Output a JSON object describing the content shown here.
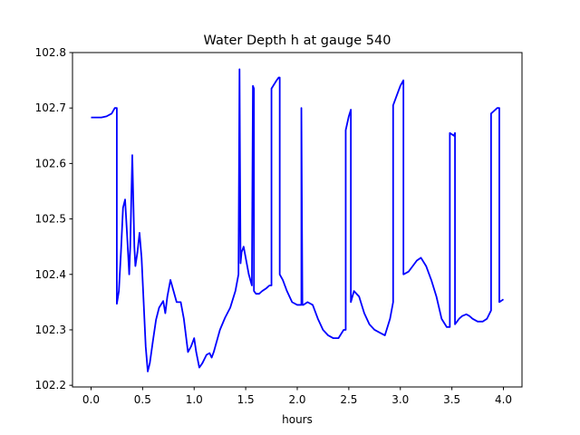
{
  "chart_data": {
    "type": "line",
    "title": "Water Depth h at gauge 540",
    "xlabel": "hours",
    "ylabel": "",
    "xlim": [
      -0.18,
      4.18
    ],
    "ylim": [
      102.197,
      102.8
    ],
    "xticks": [
      0.0,
      0.5,
      1.0,
      1.5,
      2.0,
      2.5,
      3.0,
      3.5,
      4.0
    ],
    "xtick_labels": [
      "0.0",
      "0.5",
      "1.0",
      "1.5",
      "2.0",
      "2.5",
      "3.0",
      "3.5",
      "4.0"
    ],
    "yticks": [
      102.2,
      102.3,
      102.4,
      102.5,
      102.6,
      102.7,
      102.8
    ],
    "ytick_labels": [
      "102.2",
      "102.3",
      "102.4",
      "102.5",
      "102.6",
      "102.7",
      "102.8"
    ],
    "grid": false,
    "series": [
      {
        "color": "#0000ff",
        "x": [
          0.0,
          0.1,
          0.15,
          0.2,
          0.23,
          0.25,
          0.25,
          0.27,
          0.29,
          0.31,
          0.33,
          0.35,
          0.37,
          0.38,
          0.4,
          0.42,
          0.43,
          0.45,
          0.47,
          0.49,
          0.51,
          0.53,
          0.55,
          0.57,
          0.6,
          0.63,
          0.66,
          0.7,
          0.72,
          0.74,
          0.77,
          0.8,
          0.83,
          0.87,
          0.9,
          0.94,
          0.97,
          1.0,
          1.02,
          1.05,
          1.08,
          1.12,
          1.15,
          1.17,
          1.19,
          1.22,
          1.25,
          1.3,
          1.35,
          1.4,
          1.43,
          1.44,
          1.45,
          1.46,
          1.48,
          1.5,
          1.53,
          1.56,
          1.57,
          1.58,
          1.58,
          1.6,
          1.63,
          1.66,
          1.7,
          1.73,
          1.75,
          1.75,
          1.8,
          1.82,
          1.83,
          1.83,
          1.86,
          1.9,
          1.95,
          2.0,
          2.04,
          2.04,
          2.05,
          2.06,
          2.1,
          2.15,
          2.2,
          2.25,
          2.3,
          2.35,
          2.4,
          2.45,
          2.47,
          2.47,
          2.5,
          2.52,
          2.52,
          2.55,
          2.6,
          2.65,
          2.7,
          2.75,
          2.8,
          2.85,
          2.9,
          2.93,
          2.93,
          3.0,
          3.03,
          3.03,
          3.08,
          3.12,
          3.16,
          3.2,
          3.25,
          3.3,
          3.35,
          3.4,
          3.45,
          3.48,
          3.48,
          3.52,
          3.53,
          3.53,
          3.57,
          3.6,
          3.64,
          3.67,
          3.7,
          3.75,
          3.8,
          3.84,
          3.88,
          3.88,
          3.94,
          3.96,
          3.96,
          4.0
        ],
        "y": [
          102.683,
          102.683,
          102.685,
          102.69,
          102.7,
          102.7,
          102.347,
          102.37,
          102.44,
          102.52,
          102.535,
          102.47,
          102.4,
          102.45,
          102.615,
          102.45,
          102.415,
          102.44,
          102.475,
          102.43,
          102.35,
          102.27,
          102.225,
          102.24,
          102.28,
          102.318,
          102.34,
          102.352,
          102.33,
          102.36,
          102.39,
          102.37,
          102.35,
          102.35,
          102.32,
          102.26,
          102.27,
          102.285,
          102.26,
          102.232,
          102.24,
          102.255,
          102.258,
          102.25,
          102.26,
          102.28,
          102.3,
          102.322,
          102.34,
          102.37,
          102.4,
          102.77,
          102.42,
          102.44,
          102.45,
          102.43,
          102.4,
          102.38,
          102.74,
          102.735,
          102.37,
          102.365,
          102.365,
          102.37,
          102.375,
          102.38,
          102.38,
          102.735,
          102.75,
          102.755,
          102.755,
          102.4,
          102.39,
          102.37,
          102.35,
          102.345,
          102.345,
          102.7,
          102.345,
          102.345,
          102.35,
          102.345,
          102.32,
          102.3,
          102.29,
          102.285,
          102.285,
          102.3,
          102.3,
          102.66,
          102.685,
          102.697,
          102.35,
          102.37,
          102.36,
          102.33,
          102.31,
          102.3,
          102.295,
          102.29,
          102.32,
          102.35,
          102.705,
          102.74,
          102.75,
          102.4,
          102.405,
          102.415,
          102.425,
          102.43,
          102.415,
          102.39,
          102.36,
          102.32,
          102.305,
          102.305,
          102.655,
          102.65,
          102.655,
          102.31,
          102.32,
          102.325,
          102.328,
          102.325,
          102.32,
          102.315,
          102.315,
          102.32,
          102.335,
          102.69,
          102.7,
          102.7,
          102.35,
          102.355
        ]
      }
    ]
  }
}
